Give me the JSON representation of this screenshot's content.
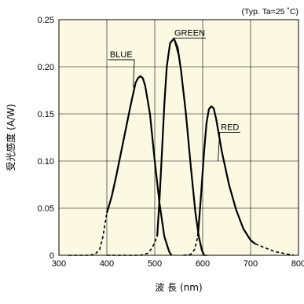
{
  "chart_data": {
    "type": "line",
    "note": "(Typ. Ta=25 ˚C)",
    "xlabel": "波 長 (nm)",
    "ylabel": "受光感度 (A/W)",
    "xlim": [
      300,
      800
    ],
    "ylim": [
      0,
      0.25
    ],
    "grid": true,
    "background": "#fcf9e3",
    "xticks": [
      300,
      400,
      500,
      600,
      700,
      800
    ],
    "xtick_labels": [
      "300",
      "400",
      "500",
      "600",
      "700",
      "800"
    ],
    "yticks": [
      0,
      0.05,
      0.1,
      0.15,
      0.2,
      0.25
    ],
    "ytick_labels": [
      "0",
      "0.05",
      "0.10",
      "0.15",
      "0.20",
      "0.25"
    ],
    "series": [
      {
        "name": "BLUE",
        "solid": [
          [
            400,
            0.045
          ],
          [
            410,
            0.062
          ],
          [
            420,
            0.085
          ],
          [
            430,
            0.11
          ],
          [
            440,
            0.135
          ],
          [
            450,
            0.16
          ],
          [
            460,
            0.183
          ],
          [
            465,
            0.188
          ],
          [
            470,
            0.19
          ],
          [
            475,
            0.188
          ],
          [
            480,
            0.18
          ],
          [
            490,
            0.15
          ],
          [
            500,
            0.1
          ],
          [
            510,
            0.055
          ],
          [
            520,
            0.02
          ],
          [
            530,
            0.004
          ],
          [
            535,
            0.0
          ]
        ],
        "dashed": [
          [
            320,
            0.0
          ],
          [
            360,
            0.0
          ],
          [
            375,
            0.001
          ],
          [
            385,
            0.006
          ],
          [
            392,
            0.02
          ],
          [
            400,
            0.045
          ]
        ]
      },
      {
        "name": "GREEN",
        "dashed_left": [
          [
            400,
            0.0
          ],
          [
            470,
            0.0
          ],
          [
            485,
            0.002
          ],
          [
            495,
            0.008
          ],
          [
            505,
            0.02
          ]
        ],
        "solid": [
          [
            505,
            0.02
          ],
          [
            510,
            0.06
          ],
          [
            515,
            0.11
          ],
          [
            520,
            0.16
          ],
          [
            525,
            0.2
          ],
          [
            532,
            0.225
          ],
          [
            540,
            0.23
          ],
          [
            548,
            0.22
          ],
          [
            555,
            0.195
          ],
          [
            565,
            0.15
          ],
          [
            575,
            0.095
          ],
          [
            585,
            0.045
          ],
          [
            592,
            0.02
          ],
          [
            598,
            0.006
          ],
          [
            603,
            0.0
          ]
        ],
        "dashed_right": [
          [
            603,
            0.0
          ],
          [
            615,
            0.0
          ]
        ]
      },
      {
        "name": "RED",
        "dashed_left": [
          [
            560,
            0.0
          ],
          [
            575,
            0.001
          ],
          [
            583,
            0.006
          ],
          [
            590,
            0.02
          ]
        ],
        "solid": [
          [
            590,
            0.02
          ],
          [
            596,
            0.06
          ],
          [
            603,
            0.11
          ],
          [
            608,
            0.14
          ],
          [
            613,
            0.155
          ],
          [
            618,
            0.158
          ],
          [
            623,
            0.156
          ],
          [
            628,
            0.145
          ],
          [
            640,
            0.11
          ],
          [
            655,
            0.075
          ],
          [
            670,
            0.048
          ],
          [
            685,
            0.028
          ],
          [
            700,
            0.016
          ],
          [
            710,
            0.012
          ]
        ],
        "dashed_right": [
          [
            710,
            0.012
          ],
          [
            730,
            0.008
          ],
          [
            750,
            0.004
          ],
          [
            770,
            0.002
          ],
          [
            790,
            0.0
          ]
        ]
      }
    ],
    "labels": [
      {
        "text": "BLUE",
        "x": 430,
        "y": 0.21
      },
      {
        "text": "GREEN",
        "x": 573,
        "y": 0.233
      },
      {
        "text": "RED",
        "x": 657,
        "y": 0.133
      }
    ]
  }
}
